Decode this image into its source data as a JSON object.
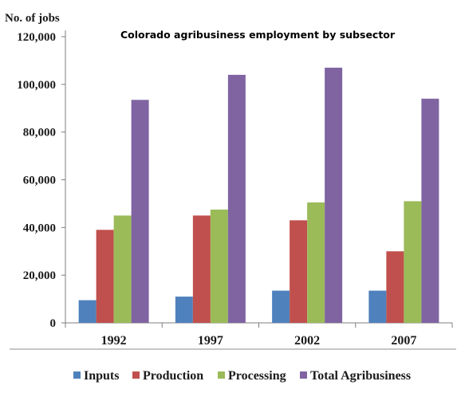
{
  "chart_data": {
    "type": "bar",
    "title": "Colorado agribusiness employment by subsector",
    "ylabel": "No. of jobs",
    "xlabel": "",
    "categories": [
      "1992",
      "1997",
      "2002",
      "2007"
    ],
    "ylim": [
      0,
      120000
    ],
    "yticks": [
      0,
      20000,
      40000,
      60000,
      80000,
      100000,
      120000
    ],
    "ytick_labels": [
      "0",
      "20,000",
      "40,000",
      "60,000",
      "80,000",
      "100,000",
      "120,000"
    ],
    "legend_position": "bottom",
    "grid": false,
    "series": [
      {
        "name": "Inputs",
        "color": "#4f81bd",
        "values": [
          9500,
          11000,
          13500,
          13500
        ]
      },
      {
        "name": "Production",
        "color": "#c0504d",
        "values": [
          39000,
          45000,
          43000,
          30000
        ]
      },
      {
        "name": "Processing",
        "color": "#9bbb59",
        "values": [
          45000,
          47500,
          50500,
          51000
        ]
      },
      {
        "name": "Total Agribusiness",
        "color": "#8064a2",
        "values": [
          93500,
          104000,
          107000,
          94000
        ]
      }
    ]
  }
}
